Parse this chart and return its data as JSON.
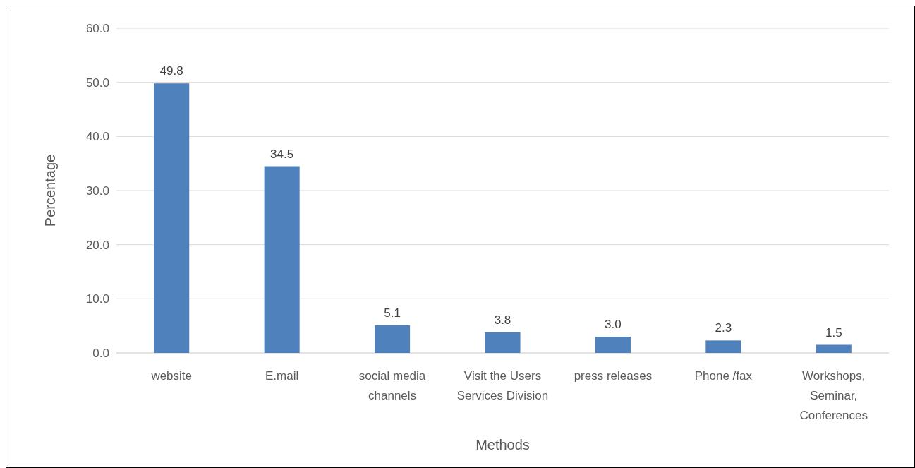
{
  "chart_data": {
    "type": "bar",
    "xlabel": "Methods",
    "ylabel": "Percentage",
    "categories": [
      "website",
      "E.mail",
      "social media channels",
      "Visit the Users Services Division",
      "press releases",
      "Phone /fax",
      "Workshops, Seminar, Conferences"
    ],
    "values": [
      49.8,
      34.5,
      5.1,
      3.8,
      3.0,
      2.3,
      1.5
    ],
    "value_labels": [
      "49.8",
      "34.5",
      "5.1",
      "3.8",
      "3.0",
      "2.3",
      "1.5"
    ],
    "color": "#4f81bd",
    "ylim": [
      0,
      60
    ],
    "yticks": [
      {
        "value": 0,
        "label": "0.0"
      },
      {
        "value": 10,
        "label": "10.0"
      },
      {
        "value": 20,
        "label": "20.0"
      },
      {
        "value": 30,
        "label": "30.0"
      },
      {
        "value": 40,
        "label": "40.0"
      },
      {
        "value": 50,
        "label": "50.0"
      },
      {
        "value": 60,
        "label": "60.0"
      }
    ],
    "grid": "y"
  }
}
